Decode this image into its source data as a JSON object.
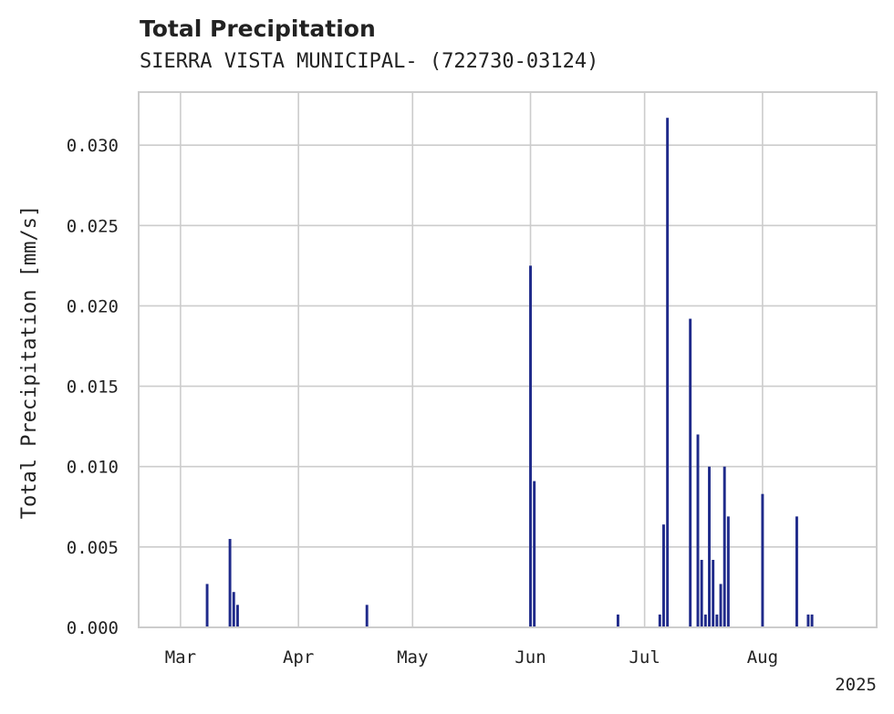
{
  "chart_data": {
    "type": "bar",
    "title": "Total Precipitation",
    "subtitle": "SIERRA VISTA MUNICIPAL- (722730-03124)",
    "xlabel": "",
    "ylabel": "Total Precipitation [mm/s]",
    "ylim": [
      0,
      0.0333
    ],
    "xlim": [
      "2025-02-18",
      "2025-08-31"
    ],
    "x_ticks": [
      {
        "date": "2025-03-01",
        "label": "Mar"
      },
      {
        "date": "2025-04-01",
        "label": "Apr"
      },
      {
        "date": "2025-05-01",
        "label": "May"
      },
      {
        "date": "2025-06-01",
        "label": "Jun"
      },
      {
        "date": "2025-07-01",
        "label": "Jul"
      },
      {
        "date": "2025-08-01",
        "label": "Aug"
      }
    ],
    "x_offset_label": "2025",
    "y_ticks": [
      {
        "value": 0,
        "label": "0.000"
      },
      {
        "value": 0.005,
        "label": "0.005"
      },
      {
        "value": 0.01,
        "label": "0.010"
      },
      {
        "value": 0.015,
        "label": "0.015"
      },
      {
        "value": 0.02,
        "label": "0.020"
      },
      {
        "value": 0.025,
        "label": "0.025"
      },
      {
        "value": 0.03,
        "label": "0.030"
      }
    ],
    "grid": true,
    "color": "#1f2a8a",
    "series": [
      {
        "points": [
          {
            "x": "2025-03-08",
            "y": 0.0027
          },
          {
            "x": "2025-03-14",
            "y": 0.0055
          },
          {
            "x": "2025-03-15",
            "y": 0.0022
          },
          {
            "x": "2025-03-16",
            "y": 0.0014
          },
          {
            "x": "2025-04-19",
            "y": 0.0014
          },
          {
            "x": "2025-06-01",
            "y": 0.0225
          },
          {
            "x": "2025-06-02",
            "y": 0.0091
          },
          {
            "x": "2025-06-24",
            "y": 0.0008
          },
          {
            "x": "2025-07-05",
            "y": 0.0008
          },
          {
            "x": "2025-07-06",
            "y": 0.0064
          },
          {
            "x": "2025-07-07",
            "y": 0.0317
          },
          {
            "x": "2025-07-13",
            "y": 0.0192
          },
          {
            "x": "2025-07-15",
            "y": 0.012
          },
          {
            "x": "2025-07-16",
            "y": 0.0042
          },
          {
            "x": "2025-07-17",
            "y": 0.0008
          },
          {
            "x": "2025-07-18",
            "y": 0.01
          },
          {
            "x": "2025-07-19",
            "y": 0.0042
          },
          {
            "x": "2025-07-20",
            "y": 0.0008
          },
          {
            "x": "2025-07-21",
            "y": 0.0027
          },
          {
            "x": "2025-07-22",
            "y": 0.01
          },
          {
            "x": "2025-07-23",
            "y": 0.0069
          },
          {
            "x": "2025-08-01",
            "y": 0.0083
          },
          {
            "x": "2025-08-10",
            "y": 0.0069
          },
          {
            "x": "2025-08-13",
            "y": 0.0008
          },
          {
            "x": "2025-08-14",
            "y": 0.0008
          }
        ]
      }
    ]
  }
}
